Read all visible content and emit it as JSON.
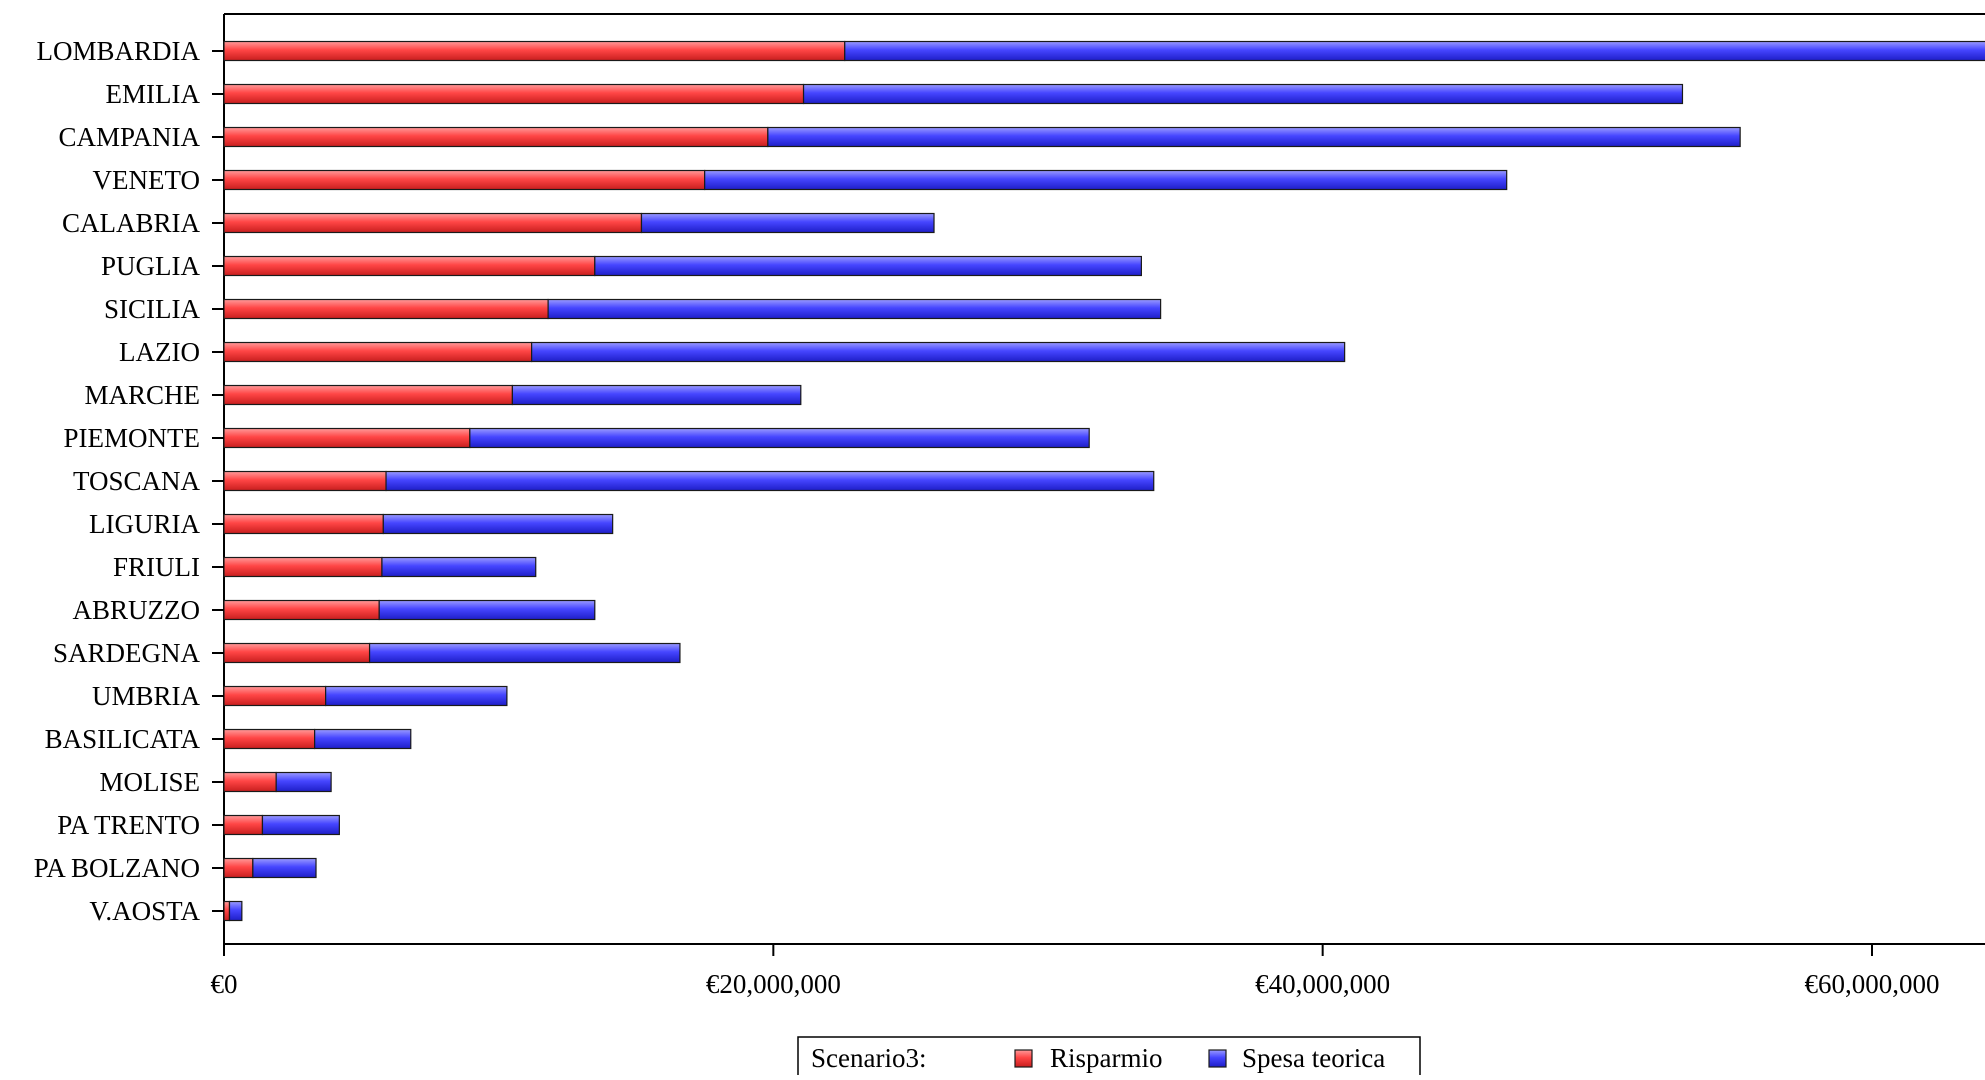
{
  "chart_data": {
    "type": "bar",
    "orientation": "horizontal",
    "stacked": true,
    "categories": [
      "LOMBARDIA",
      "EMILIA",
      "CAMPANIA",
      "VENETO",
      "CALABRIA",
      "PUGLIA",
      "SICILIA",
      "LAZIO",
      "MARCHE",
      "PIEMONTE",
      "TOSCANA",
      "LIGURIA",
      "FRIULI",
      "ABRUZZO",
      "SARDEGNA",
      "UMBRIA",
      "BASILICATA",
      "MOLISE",
      "PA TRENTO",
      "PA BOLZANO",
      "V.AOSTA"
    ],
    "series": [
      {
        "name": "Risparmio",
        "color": "#ff4a4a",
        "values": [
          22600000,
          21100000,
          19800000,
          17500000,
          15200000,
          13500000,
          11800000,
          11200000,
          10500000,
          8950000,
          5900000,
          5800000,
          5750000,
          5650000,
          5300000,
          3700000,
          3300000,
          1900000,
          1400000,
          1050000,
          200000
        ]
      },
      {
        "name": "Spesa teorica",
        "color": "#4a4aff",
        "values": [
          41900000,
          32000000,
          35400000,
          29200000,
          10650000,
          19900000,
          22300000,
          29600000,
          10500000,
          22550000,
          27950000,
          8350000,
          5600000,
          7850000,
          11300000,
          6600000,
          3500000,
          2000000,
          2800000,
          2300000,
          450000
        ]
      }
    ],
    "xlim": [
      0,
      64500000
    ],
    "xticks": [
      0,
      20000000,
      40000000,
      60000000
    ],
    "xtick_labels": [
      "€0",
      "€20,000,000",
      "€40,000,000",
      "€60,000,000"
    ],
    "legend": {
      "title": "Scenario3:",
      "placement": "bottom-center"
    },
    "grid": false
  }
}
